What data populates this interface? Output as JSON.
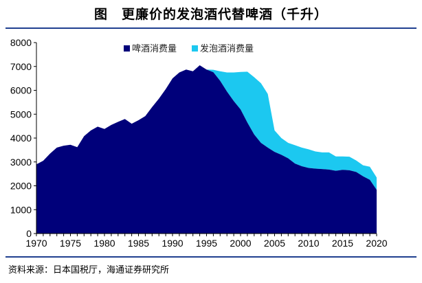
{
  "title": "图　更廉价的发泡酒代替啤酒（千升）",
  "source": "资料来源：日本国税厅，海通证券研究所",
  "chart_data": {
    "type": "area",
    "stacked": true,
    "x": [
      1970,
      1971,
      1972,
      1973,
      1974,
      1975,
      1976,
      1977,
      1978,
      1979,
      1980,
      1981,
      1982,
      1983,
      1984,
      1985,
      1986,
      1987,
      1988,
      1989,
      1990,
      1991,
      1992,
      1993,
      1994,
      1995,
      1996,
      1997,
      1998,
      1999,
      2000,
      2001,
      2002,
      2003,
      2004,
      2005,
      2006,
      2007,
      2008,
      2009,
      2010,
      2011,
      2012,
      2013,
      2014,
      2015,
      2016,
      2017,
      2018,
      2019,
      2020
    ],
    "series": [
      {
        "name": "啤酒消费量",
        "color": "#00007a",
        "values": [
          2900,
          3050,
          3350,
          3600,
          3680,
          3720,
          3620,
          4080,
          4320,
          4480,
          4380,
          4550,
          4680,
          4800,
          4600,
          4750,
          4920,
          5300,
          5650,
          6050,
          6500,
          6750,
          6870,
          6800,
          7050,
          6870,
          6760,
          6400,
          5950,
          5550,
          5200,
          4650,
          4150,
          3800,
          3600,
          3420,
          3300,
          3150,
          2930,
          2820,
          2750,
          2720,
          2700,
          2680,
          2630,
          2670,
          2650,
          2580,
          2400,
          2250,
          1830
        ]
      },
      {
        "name": "发泡酒消费量",
        "color": "#1cc8f0",
        "values": [
          0,
          0,
          0,
          0,
          0,
          0,
          0,
          0,
          0,
          0,
          0,
          0,
          0,
          0,
          0,
          0,
          0,
          0,
          0,
          0,
          0,
          0,
          0,
          0,
          0,
          0,
          100,
          400,
          800,
          1200,
          1570,
          2130,
          2400,
          2500,
          2250,
          900,
          700,
          650,
          770,
          780,
          780,
          720,
          700,
          720,
          600,
          560,
          570,
          480,
          460,
          550,
          520
        ]
      }
    ],
    "xlim": [
      1970,
      2020
    ],
    "ylim": [
      0,
      8000
    ],
    "xticks": [
      1970,
      1975,
      1980,
      1985,
      1990,
      1995,
      2000,
      2005,
      2010,
      2015,
      2020
    ],
    "yticks": [
      0,
      1000,
      2000,
      3000,
      4000,
      5000,
      6000,
      7000,
      8000
    ],
    "grid": false,
    "legend_position": "top-center"
  }
}
